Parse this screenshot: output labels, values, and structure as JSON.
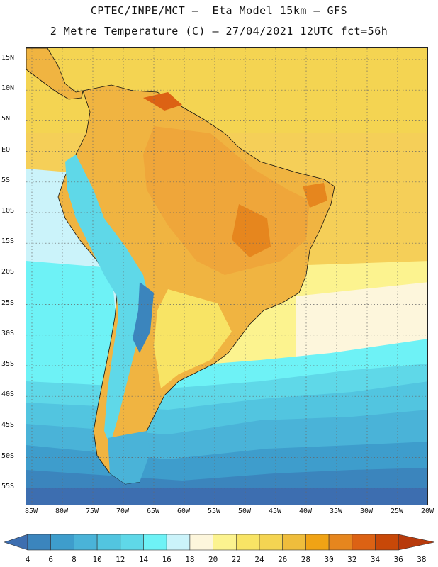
{
  "header": {
    "title_line1": "CPTEC/INPE/MCT –  Eta Model 15km – GFS",
    "title_line2": "2 Metre Temperature (C) – 27/04/2021 12UTC fct=56h"
  },
  "map": {
    "region": "South America",
    "variable": "2 Metre Temperature",
    "units": "C",
    "lat_labels": [
      "15N",
      "10N",
      "5N",
      "EQ",
      "5S",
      "10S",
      "15S",
      "20S",
      "25S",
      "30S",
      "35S",
      "40S",
      "45S",
      "50S",
      "55S"
    ],
    "lon_labels": [
      "85W",
      "80W",
      "75W",
      "70W",
      "65W",
      "60W",
      "55W",
      "50W",
      "45W",
      "40W",
      "35W",
      "30W",
      "25W",
      "20W"
    ]
  },
  "colorbar": {
    "levels": [
      "4",
      "6",
      "8",
      "10",
      "12",
      "14",
      "16",
      "18",
      "20",
      "22",
      "24",
      "26",
      "28",
      "30",
      "32",
      "34",
      "36",
      "38"
    ],
    "colors": [
      "#3d6eb0",
      "#3b85bd",
      "#3e9dcc",
      "#4ab3d8",
      "#52c5e0",
      "#5fd8e8",
      "#6ef2f6",
      "#cbf3fa",
      "#fdf6dc",
      "#fcf38f",
      "#f8e465",
      "#f4d452",
      "#efbd3c",
      "#f0a315",
      "#e6861e",
      "#dc6214",
      "#c84808",
      "#b73a0c"
    ]
  }
}
